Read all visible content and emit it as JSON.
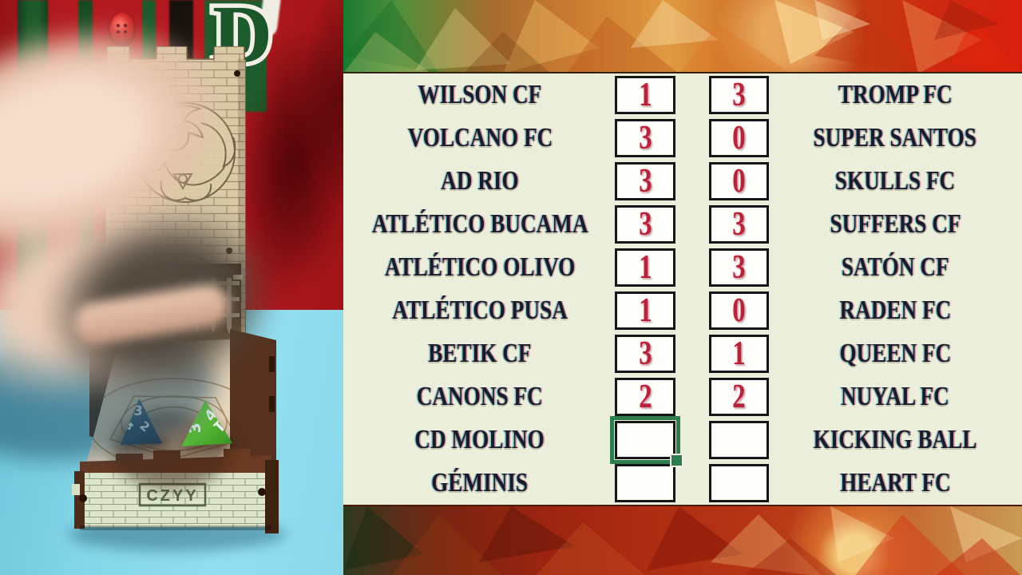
{
  "photo": {
    "jersey_letter": "D",
    "jersey_red": "#b2191f",
    "stripe_green": "#1d5a2b",
    "surface_blue": "#85d6e9",
    "tower_wood": "#d9c9a7",
    "tray_brand": "CZYY",
    "dice": [
      {
        "name": "blue-d4",
        "hex": "#3d5a73",
        "values": [
          "3",
          "2",
          "4"
        ]
      },
      {
        "name": "green-d4",
        "hex": "#5bbb39",
        "values": [
          "4",
          "3",
          "1"
        ]
      }
    ]
  },
  "scoreboard": {
    "background": "#ebeedb",
    "cell_background": "#fdfdfa",
    "cell_border": "#161616",
    "team_color": "#1b1b2e",
    "score_color": "#b5243c",
    "selection_color": "#2e7d4e",
    "matches": [
      {
        "home": "WILSON CF",
        "home_score": "1",
        "away_score": "3",
        "away": "TROMP FC"
      },
      {
        "home": "VOLCANO FC",
        "home_score": "3",
        "away_score": "0",
        "away": "SUPER SANTOS"
      },
      {
        "home": "AD RIO",
        "home_score": "3",
        "away_score": "0",
        "away": "SKULLS FC"
      },
      {
        "home": "ATLÉTICO BUCAMA",
        "home_score": "3",
        "away_score": "3",
        "away": "SUFFERS CF"
      },
      {
        "home": "ATLÉTICO OLIVO",
        "home_score": "1",
        "away_score": "3",
        "away": "SATÓN CF"
      },
      {
        "home": "ATLÉTICO PUSA",
        "home_score": "1",
        "away_score": "0",
        "away": "RADEN FC"
      },
      {
        "home": "BETIK CF",
        "home_score": "3",
        "away_score": "1",
        "away": "QUEEN FC"
      },
      {
        "home": "CANONS FC",
        "home_score": "2",
        "away_score": "2",
        "away": "NUYAL FC"
      },
      {
        "home": "CD MOLINO",
        "home_score": "",
        "away_score": "",
        "away": "KICKING BALL"
      },
      {
        "home": "GÉMINIS",
        "home_score": "",
        "away_score": "",
        "away": "HEART FC"
      }
    ],
    "selection": {
      "row_index": 8,
      "column": "home_score"
    }
  }
}
